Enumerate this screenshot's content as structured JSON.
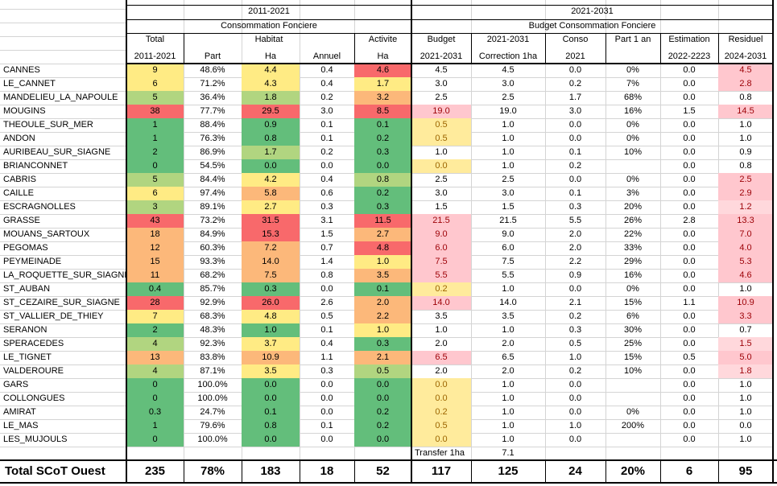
{
  "header": {
    "group_2011": "2011-2021",
    "sub_2011": "Consommation Fonciere",
    "group_2021": "2021-2031",
    "sub_2021": "Budget Consommation Fonciere",
    "row3": [
      "Total",
      "Habitat",
      "Activite",
      "Budget",
      "2021-2031",
      "Conso",
      "Part 1 an",
      "Estimation",
      "Residuel"
    ],
    "row4": [
      "2011-2021",
      "Part",
      "Ha",
      "Annuel",
      "Ha",
      "2021-2031",
      "Correction 1ha",
      "2021",
      "",
      "2022-2223",
      "2024-2031"
    ]
  },
  "rows": [
    {
      "commune": "CANNES",
      "total": "9",
      "part": "48.6%",
      "ha": "4.4",
      "annuel": "0.4",
      "activite": "4.6",
      "budget": "4.5",
      "correction": "4.5",
      "conso": "0.0",
      "part1an": "0%",
      "estimation": "0.0",
      "residuel": "4.5"
    },
    {
      "commune": "LE_CANNET",
      "total": "6",
      "part": "71.2%",
      "ha": "4.3",
      "annuel": "0.4",
      "activite": "1.7",
      "budget": "3.0",
      "correction": "3.0",
      "conso": "0.2",
      "part1an": "7%",
      "estimation": "0.0",
      "residuel": "2.8"
    },
    {
      "commune": "MANDELIEU_LA_NAPOULE",
      "total": "5",
      "part": "36.4%",
      "ha": "1.8",
      "annuel": "0.2",
      "activite": "3.2",
      "budget": "2.5",
      "correction": "2.5",
      "conso": "1.7",
      "part1an": "68%",
      "estimation": "0.0",
      "residuel": "0.8"
    },
    {
      "commune": "MOUGINS",
      "total": "38",
      "part": "77.7%",
      "ha": "29.5",
      "annuel": "3.0",
      "activite": "8.5",
      "budget": "19.0",
      "correction": "19.0",
      "conso": "3.0",
      "part1an": "16%",
      "estimation": "1.5",
      "residuel": "14.5"
    },
    {
      "commune": "THEOULE_SUR_MER",
      "total": "1",
      "part": "88.4%",
      "ha": "0.9",
      "annuel": "0.1",
      "activite": "0.1",
      "budget": "0.5",
      "correction": "1.0",
      "conso": "0.0",
      "part1an": "0%",
      "estimation": "0.0",
      "residuel": "1.0"
    },
    {
      "commune": "ANDON",
      "total": "1",
      "part": "76.3%",
      "ha": "0.8",
      "annuel": "0.1",
      "activite": "0.2",
      "budget": "0.5",
      "correction": "1.0",
      "conso": "0.0",
      "part1an": "0%",
      "estimation": "0.0",
      "residuel": "1.0"
    },
    {
      "commune": "AURIBEAU_SUR_SIAGNE",
      "total": "2",
      "part": "86.9%",
      "ha": "1.7",
      "annuel": "0.2",
      "activite": "0.3",
      "budget": "1.0",
      "correction": "1.0",
      "conso": "0.1",
      "part1an": "10%",
      "estimation": "0.0",
      "residuel": "0.9"
    },
    {
      "commune": "BRIANCONNET",
      "total": "0",
      "part": "54.5%",
      "ha": "0.0",
      "annuel": "0.0",
      "activite": "0.0",
      "budget": "0.0",
      "correction": "1.0",
      "conso": "0.2",
      "part1an": "",
      "estimation": "0.0",
      "residuel": "0.8"
    },
    {
      "commune": "CABRIS",
      "total": "5",
      "part": "84.4%",
      "ha": "4.2",
      "annuel": "0.4",
      "activite": "0.8",
      "budget": "2.5",
      "correction": "2.5",
      "conso": "0.0",
      "part1an": "0%",
      "estimation": "0.0",
      "residuel": "2.5"
    },
    {
      "commune": "CAILLE",
      "total": "6",
      "part": "97.4%",
      "ha": "5.8",
      "annuel": "0.6",
      "activite": "0.2",
      "budget": "3.0",
      "correction": "3.0",
      "conso": "0.1",
      "part1an": "3%",
      "estimation": "0.0",
      "residuel": "2.9"
    },
    {
      "commune": "ESCRAGNOLLES",
      "total": "3",
      "part": "89.1%",
      "ha": "2.7",
      "annuel": "0.3",
      "activite": "0.3",
      "budget": "1.5",
      "correction": "1.5",
      "conso": "0.3",
      "part1an": "20%",
      "estimation": "0.0",
      "residuel": "1.2"
    },
    {
      "commune": "GRASSE",
      "total": "43",
      "part": "73.2%",
      "ha": "31.5",
      "annuel": "3.1",
      "activite": "11.5",
      "budget": "21.5",
      "correction": "21.5",
      "conso": "5.5",
      "part1an": "26%",
      "estimation": "2.8",
      "residuel": "13.3"
    },
    {
      "commune": "MOUANS_SARTOUX",
      "total": "18",
      "part": "84.9%",
      "ha": "15.3",
      "annuel": "1.5",
      "activite": "2.7",
      "budget": "9.0",
      "correction": "9.0",
      "conso": "2.0",
      "part1an": "22%",
      "estimation": "0.0",
      "residuel": "7.0"
    },
    {
      "commune": "PEGOMAS",
      "total": "12",
      "part": "60.3%",
      "ha": "7.2",
      "annuel": "0.7",
      "activite": "4.8",
      "budget": "6.0",
      "correction": "6.0",
      "conso": "2.0",
      "part1an": "33%",
      "estimation": "0.0",
      "residuel": "4.0"
    },
    {
      "commune": "PEYMEINADE",
      "total": "15",
      "part": "93.3%",
      "ha": "14.0",
      "annuel": "1.4",
      "activite": "1.0",
      "budget": "7.5",
      "correction": "7.5",
      "conso": "2.2",
      "part1an": "29%",
      "estimation": "0.0",
      "residuel": "5.3"
    },
    {
      "commune": "LA_ROQUETTE_SUR_SIAGNE",
      "total": "11",
      "part": "68.2%",
      "ha": "7.5",
      "annuel": "0.8",
      "activite": "3.5",
      "budget": "5.5",
      "correction": "5.5",
      "conso": "0.9",
      "part1an": "16%",
      "estimation": "0.0",
      "residuel": "4.6"
    },
    {
      "commune": "ST_AUBAN",
      "total": "0.4",
      "part": "85.7%",
      "ha": "0.3",
      "annuel": "0.0",
      "activite": "0.1",
      "budget": "0.2",
      "correction": "1.0",
      "conso": "0.0",
      "part1an": "0%",
      "estimation": "0.0",
      "residuel": "1.0"
    },
    {
      "commune": "ST_CEZAIRE_SUR_SIAGNE",
      "total": "28",
      "part": "92.9%",
      "ha": "26.0",
      "annuel": "2.6",
      "activite": "2.0",
      "budget": "14.0",
      "correction": "14.0",
      "conso": "2.1",
      "part1an": "15%",
      "estimation": "1.1",
      "residuel": "10.9"
    },
    {
      "commune": "ST_VALLIER_DE_THIEY",
      "total": "7",
      "part": "68.3%",
      "ha": "4.8",
      "annuel": "0.5",
      "activite": "2.2",
      "budget": "3.5",
      "correction": "3.5",
      "conso": "0.2",
      "part1an": "6%",
      "estimation": "0.0",
      "residuel": "3.3"
    },
    {
      "commune": "SERANON",
      "total": "2",
      "part": "48.3%",
      "ha": "1.0",
      "annuel": "0.1",
      "activite": "1.0",
      "budget": "1.0",
      "correction": "1.0",
      "conso": "0.3",
      "part1an": "30%",
      "estimation": "0.0",
      "residuel": "0.7"
    },
    {
      "commune": "SPERACEDES",
      "total": "4",
      "part": "92.3%",
      "ha": "3.7",
      "annuel": "0.4",
      "activite": "0.3",
      "budget": "2.0",
      "correction": "2.0",
      "conso": "0.5",
      "part1an": "25%",
      "estimation": "0.0",
      "residuel": "1.5"
    },
    {
      "commune": "LE_TIGNET",
      "total": "13",
      "part": "83.8%",
      "ha": "10.9",
      "annuel": "1.1",
      "activite": "2.1",
      "budget": "6.5",
      "correction": "6.5",
      "conso": "1.0",
      "part1an": "15%",
      "estimation": "0.5",
      "residuel": "5.0"
    },
    {
      "commune": "VALDEROURE",
      "total": "4",
      "part": "87.1%",
      "ha": "3.5",
      "annuel": "0.3",
      "activite": "0.5",
      "budget": "2.0",
      "correction": "2.0",
      "conso": "0.2",
      "part1an": "10%",
      "estimation": "0.0",
      "residuel": "1.8"
    },
    {
      "commune": "GARS",
      "total": "0",
      "part": "100.0%",
      "ha": "0.0",
      "annuel": "0.0",
      "activite": "0.0",
      "budget": "0.0",
      "correction": "1.0",
      "conso": "0.0",
      "part1an": "",
      "estimation": "0.0",
      "residuel": "1.0"
    },
    {
      "commune": "COLLONGUES",
      "total": "0",
      "part": "100.0%",
      "ha": "0.0",
      "annuel": "0.0",
      "activite": "0.0",
      "budget": "0.0",
      "correction": "1.0",
      "conso": "0.0",
      "part1an": "",
      "estimation": "0.0",
      "residuel": "1.0"
    },
    {
      "commune": "AMIRAT",
      "total": "0.3",
      "part": "24.7%",
      "ha": "0.1",
      "annuel": "0.0",
      "activite": "0.2",
      "budget": "0.2",
      "correction": "1.0",
      "conso": "0.0",
      "part1an": "0%",
      "estimation": "0.0",
      "residuel": "1.0"
    },
    {
      "commune": "LE_MAS",
      "total": "1",
      "part": "79.6%",
      "ha": "0.8",
      "annuel": "0.1",
      "activite": "0.2",
      "budget": "0.5",
      "correction": "1.0",
      "conso": "1.0",
      "part1an": "200%",
      "estimation": "0.0",
      "residuel": "0.0"
    },
    {
      "commune": "LES_MUJOULS",
      "total": "0",
      "part": "100.0%",
      "ha": "0.0",
      "annuel": "0.0",
      "activite": "0.0",
      "budget": "0.0",
      "correction": "1.0",
      "conso": "0.0",
      "part1an": "",
      "estimation": "0.0",
      "residuel": "1.0"
    }
  ],
  "transfer": {
    "label": "Transfer 1ha",
    "value": "7.1"
  },
  "totals": {
    "label": "Total SCoT Ouest",
    "total": "235",
    "part": "78%",
    "ha": "183",
    "annuel": "18",
    "activite": "52",
    "budget": "117",
    "correction": "125",
    "conso": "24",
    "part1an": "20%",
    "estimation": "6",
    "residuel": "95"
  },
  "colors": {
    "green": "#63be7b",
    "lightgreen": "#b1d580",
    "yellow": "#ffeb84",
    "orange": "#fcb87a",
    "red": "#f8696b",
    "pink": "#ffc7ce",
    "palepink": "#ffd8dc",
    "paleyellow": "#ffeb9c",
    "grid": "#d4d4d4"
  }
}
